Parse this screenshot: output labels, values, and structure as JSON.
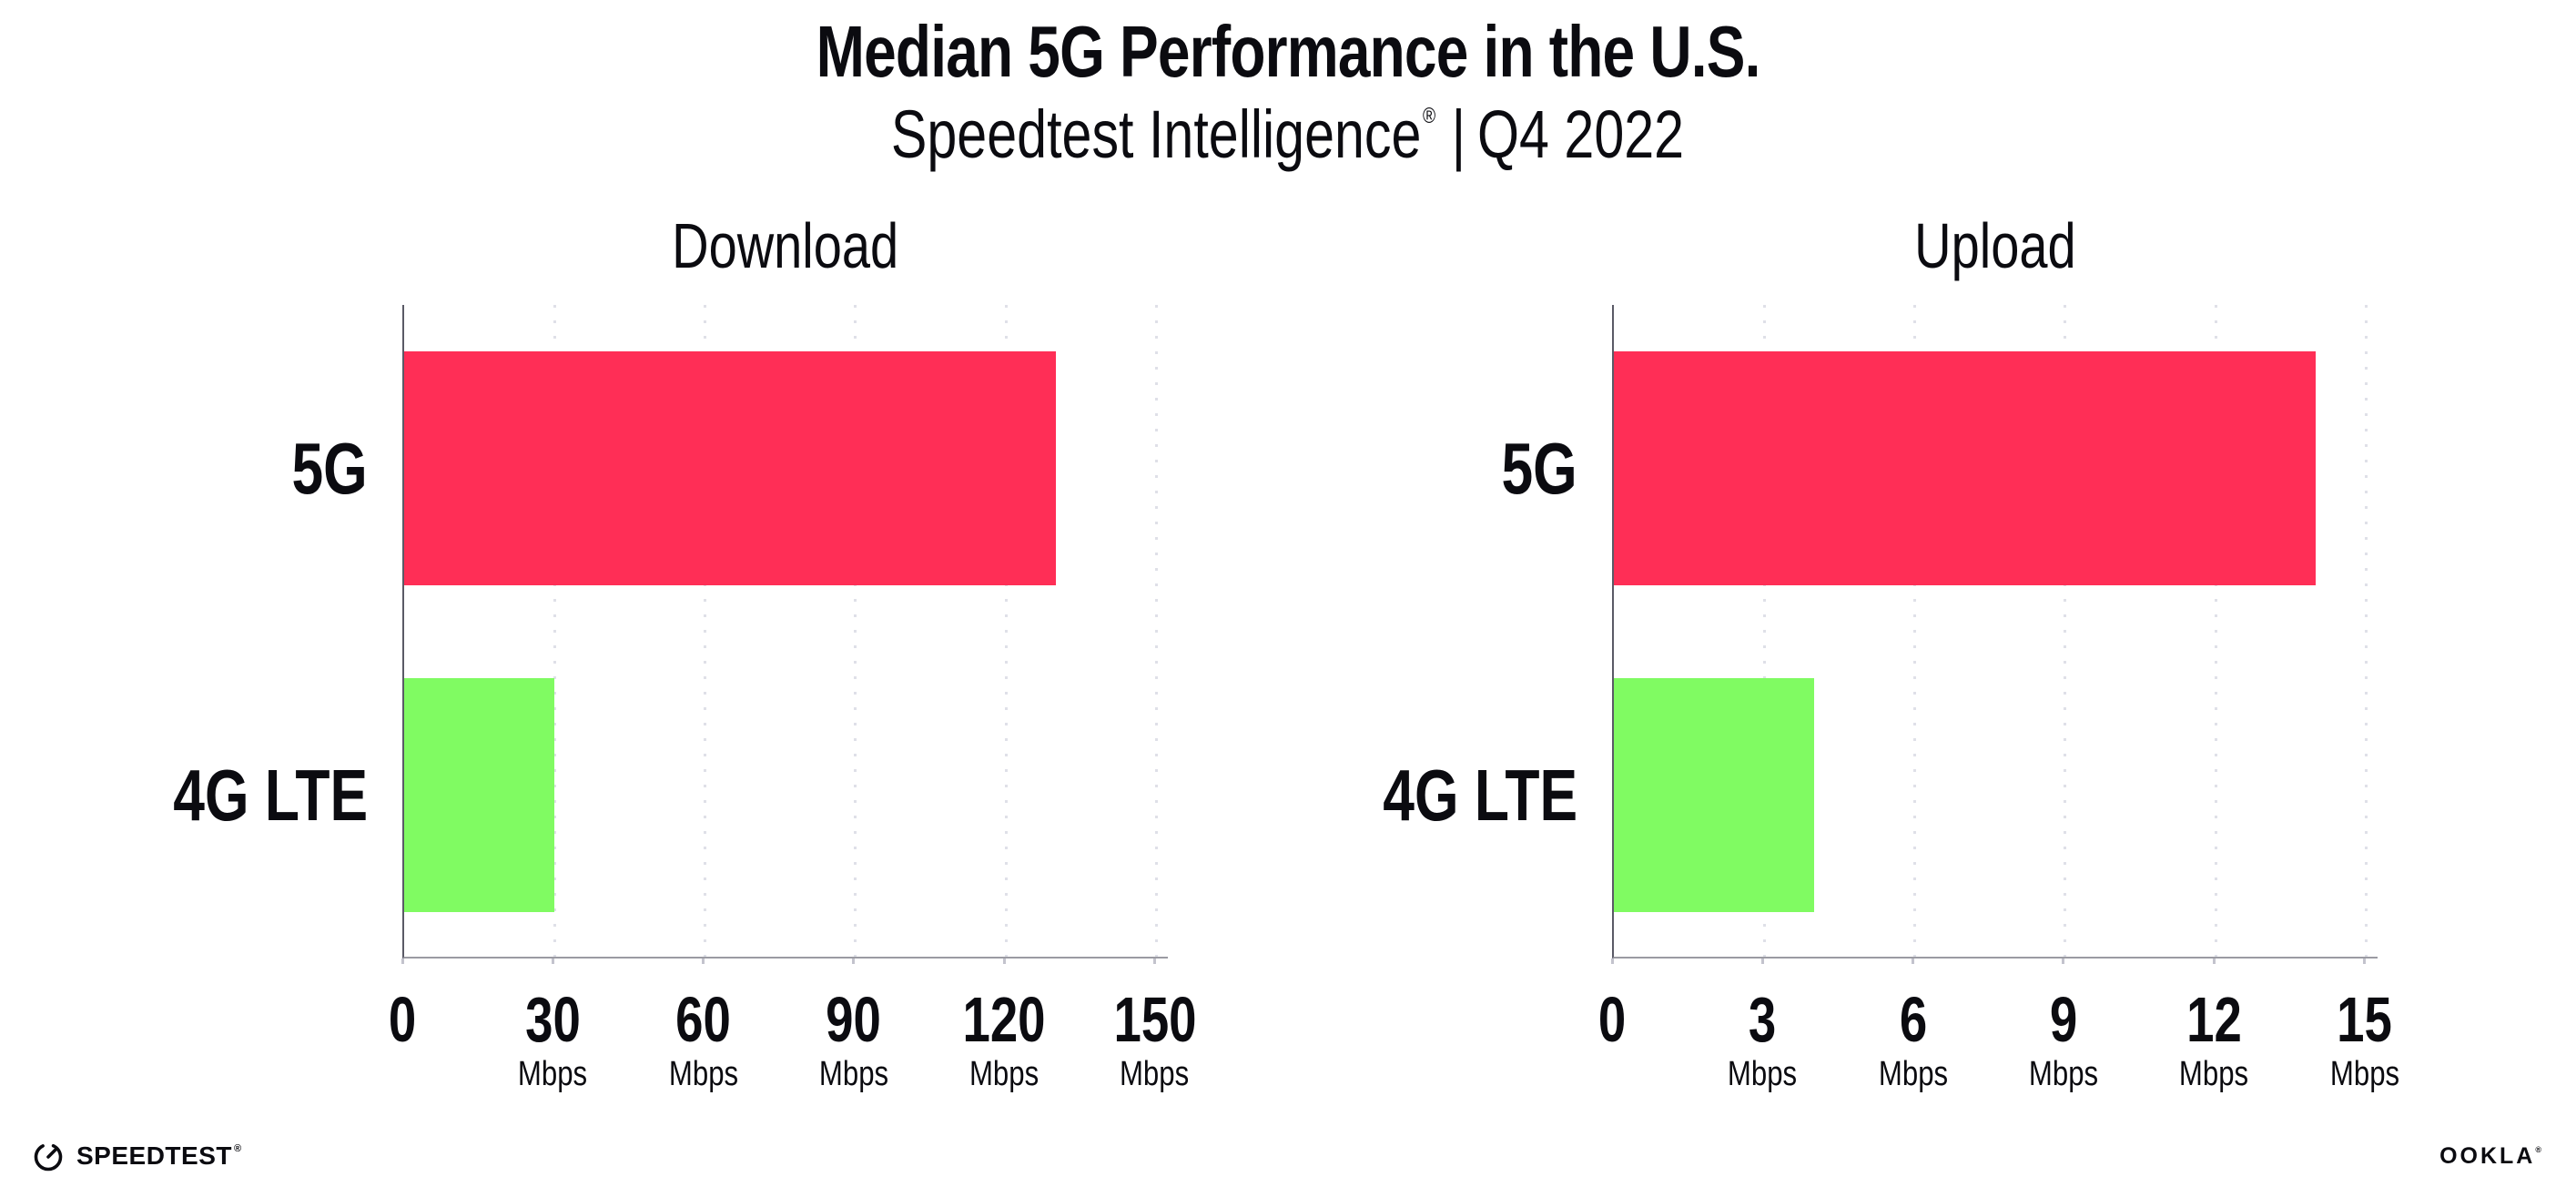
{
  "header": {
    "title": "Median 5G Performance in the U.S.",
    "subtitle_brand": "Speedtest Intelligence",
    "subtitle_reg": "®",
    "subtitle_sep": "|",
    "subtitle_period": "Q4 2022"
  },
  "colors": {
    "bar_5g_pink": "#ff2e56",
    "bar_4g_green": "#80fb62",
    "axis_left": "#5a5a66",
    "axis_bottom": "#9b9ba3",
    "gridline_dots": "#dfe0e8",
    "tick_marks": "#c3c3cd",
    "text": "#0b0b10"
  },
  "chart_data": [
    {
      "type": "bar",
      "orientation": "horizontal",
      "title": "Download",
      "categories": [
        "5G",
        "4G LTE"
      ],
      "values": [
        130,
        30
      ],
      "unit": "Mbps",
      "xlim": [
        0,
        150
      ],
      "xticks": [
        0,
        30,
        60,
        90,
        120,
        150
      ],
      "bar_colors": [
        "#ff2e56",
        "#80fb62"
      ],
      "grid": "dotted-vertical",
      "legend": "none"
    },
    {
      "type": "bar",
      "orientation": "horizontal",
      "title": "Upload",
      "categories": [
        "5G",
        "4G LTE"
      ],
      "values": [
        14,
        4
      ],
      "unit": "Mbps",
      "xlim": [
        0,
        15
      ],
      "xticks": [
        0,
        3,
        6,
        9,
        12,
        15
      ],
      "bar_colors": [
        "#ff2e56",
        "#80fb62"
      ],
      "grid": "dotted-vertical",
      "legend": "none"
    }
  ],
  "footer": {
    "speedtest_label": "SPEEDTEST",
    "speedtest_mark": "®",
    "ookla_label": "OOKLA",
    "ookla_mark": "®"
  }
}
